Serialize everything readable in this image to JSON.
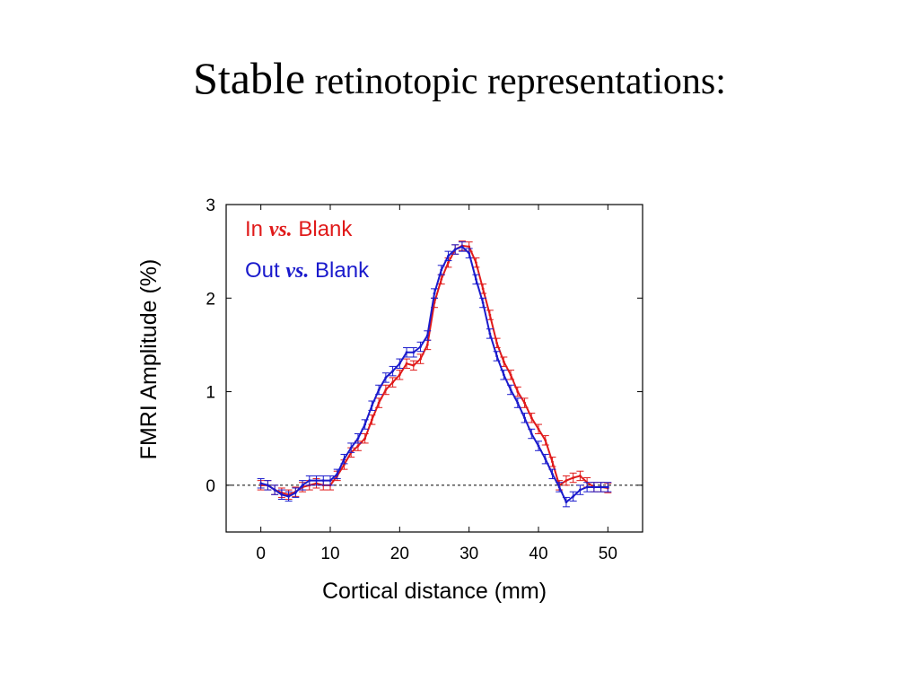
{
  "slide": {
    "title_part1": "Stable",
    "title_part2": " retinotopic representations:"
  },
  "chart_data": {
    "type": "line",
    "title": "",
    "xlabel": "Cortical distance (mm)",
    "ylabel": "FMRI Amplitude (%)",
    "xlim": [
      -5,
      55
    ],
    "ylim": [
      -0.5,
      3
    ],
    "xticks": [
      0,
      10,
      20,
      30,
      40,
      50
    ],
    "yticks": [
      0,
      1,
      2,
      3
    ],
    "grid": false,
    "zero_reference_line": "dotted",
    "legend_position": "top-left",
    "series": [
      {
        "name_parts": [
          "In ",
          "vs.",
          " Blank"
        ],
        "color": "#e01a1a",
        "x": [
          0,
          1,
          2,
          3,
          4,
          5,
          6,
          7,
          8,
          9,
          10,
          11,
          12,
          13,
          14,
          15,
          16,
          17,
          18,
          19,
          20,
          21,
          22,
          23,
          24,
          25,
          26,
          27,
          28,
          29,
          30,
          31,
          32,
          33,
          34,
          35,
          36,
          37,
          38,
          39,
          40,
          41,
          42,
          43,
          44,
          45,
          46,
          47,
          48,
          49,
          50
        ],
        "y": [
          0.0,
          0.0,
          -0.05,
          -0.08,
          -0.1,
          -0.07,
          -0.02,
          0.0,
          0.02,
          0.0,
          0.0,
          0.1,
          0.22,
          0.35,
          0.42,
          0.5,
          0.7,
          0.88,
          1.02,
          1.1,
          1.18,
          1.3,
          1.28,
          1.35,
          1.5,
          1.95,
          2.2,
          2.38,
          2.52,
          2.56,
          2.55,
          2.38,
          2.1,
          1.82,
          1.52,
          1.32,
          1.18,
          1.0,
          0.88,
          0.72,
          0.6,
          0.48,
          0.25,
          0.0,
          0.05,
          0.08,
          0.1,
          0.03,
          -0.02,
          -0.02,
          -0.03
        ],
        "error": 0.05
      },
      {
        "name_parts": [
          "Out ",
          "vs.",
          " Blank"
        ],
        "color": "#1a1acc",
        "x": [
          0,
          1,
          2,
          3,
          4,
          5,
          6,
          7,
          8,
          9,
          10,
          11,
          12,
          13,
          14,
          15,
          16,
          17,
          18,
          19,
          20,
          21,
          22,
          23,
          24,
          25,
          26,
          27,
          28,
          29,
          30,
          31,
          32,
          33,
          34,
          35,
          36,
          37,
          38,
          39,
          40,
          41,
          42,
          43,
          44,
          45,
          46,
          47,
          48,
          49,
          50
        ],
        "y": [
          0.02,
          0.0,
          -0.05,
          -0.1,
          -0.12,
          -0.08,
          0.0,
          0.05,
          0.05,
          0.05,
          0.05,
          0.12,
          0.28,
          0.4,
          0.5,
          0.65,
          0.85,
          1.02,
          1.15,
          1.22,
          1.3,
          1.42,
          1.42,
          1.48,
          1.6,
          2.05,
          2.3,
          2.45,
          2.52,
          2.55,
          2.48,
          2.2,
          1.95,
          1.62,
          1.38,
          1.18,
          1.02,
          0.88,
          0.72,
          0.55,
          0.42,
          0.28,
          0.12,
          -0.02,
          -0.18,
          -0.12,
          -0.05,
          -0.02,
          -0.02,
          -0.02,
          -0.02
        ],
        "error": 0.05
      }
    ]
  }
}
